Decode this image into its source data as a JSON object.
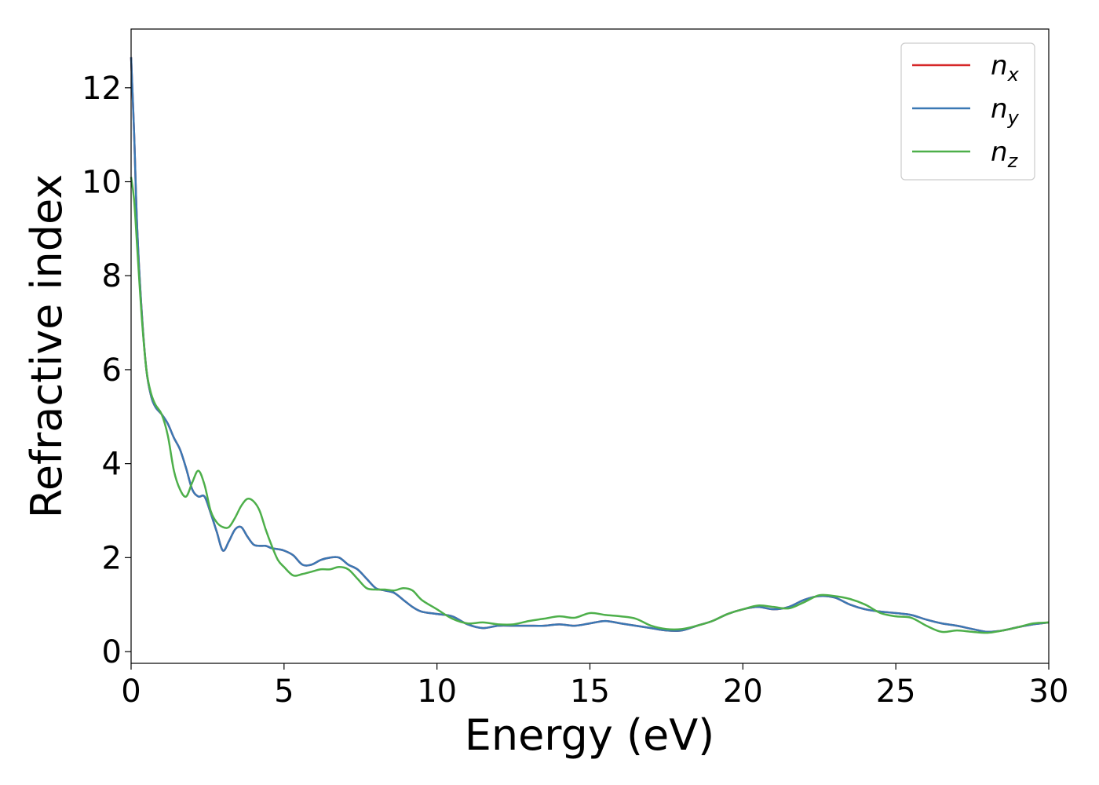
{
  "chart_data": {
    "type": "line",
    "title": "",
    "xlabel": "Energy (eV)",
    "ylabel": "Refractive index",
    "xlim": [
      0,
      30
    ],
    "ylim": [
      -0.25,
      13.25
    ],
    "xticks": [
      0,
      5,
      10,
      15,
      20,
      25,
      30
    ],
    "yticks": [
      0,
      2,
      4,
      6,
      8,
      10,
      12
    ],
    "grid": false,
    "legend_position": "top-right",
    "series": [
      {
        "name": "n",
        "subscript": "x",
        "color": "#d62728",
        "x": [
          0,
          0.1,
          0.2,
          0.35,
          0.5,
          0.65,
          0.8,
          1.0,
          1.2,
          1.4,
          1.6,
          1.8,
          2.0,
          2.2,
          2.4,
          2.6,
          2.8,
          3.0,
          3.2,
          3.4,
          3.6,
          3.8,
          4.0,
          4.2,
          4.4,
          4.6,
          4.8,
          5.0,
          5.3,
          5.6,
          5.9,
          6.2,
          6.5,
          6.8,
          7.1,
          7.4,
          7.7,
          8.0,
          8.3,
          8.6,
          8.9,
          9.2,
          9.5,
          10.0,
          10.5,
          11.0,
          11.5,
          12.0,
          12.5,
          13.0,
          13.5,
          14.0,
          14.5,
          15.0,
          15.5,
          16.0,
          16.5,
          17.0,
          17.5,
          18.0,
          18.5,
          19.0,
          19.5,
          20.0,
          20.5,
          21.0,
          21.5,
          22.0,
          22.5,
          23.0,
          23.5,
          24.0,
          24.5,
          25.0,
          25.5,
          26.0,
          26.5,
          27.0,
          27.5,
          28.0,
          28.5,
          29.0,
          29.5,
          30.0
        ],
        "y": [
          12.65,
          11.0,
          9.0,
          7.2,
          6.0,
          5.45,
          5.2,
          5.05,
          4.85,
          4.55,
          4.3,
          3.9,
          3.45,
          3.3,
          3.3,
          2.95,
          2.55,
          2.15,
          2.35,
          2.6,
          2.65,
          2.45,
          2.28,
          2.25,
          2.25,
          2.2,
          2.18,
          2.15,
          2.05,
          1.85,
          1.85,
          1.95,
          2.0,
          2.0,
          1.85,
          1.75,
          1.55,
          1.35,
          1.3,
          1.25,
          1.1,
          0.95,
          0.85,
          0.8,
          0.75,
          0.58,
          0.5,
          0.55,
          0.55,
          0.55,
          0.55,
          0.58,
          0.55,
          0.6,
          0.65,
          0.6,
          0.55,
          0.5,
          0.45,
          0.45,
          0.55,
          0.65,
          0.8,
          0.9,
          0.95,
          0.9,
          0.95,
          1.1,
          1.18,
          1.15,
          1.0,
          0.9,
          0.85,
          0.82,
          0.78,
          0.68,
          0.6,
          0.55,
          0.48,
          0.42,
          0.45,
          0.52,
          0.58,
          0.62
        ]
      },
      {
        "name": "n",
        "subscript": "y",
        "color": "#3a78b4",
        "x": [
          0,
          0.1,
          0.2,
          0.35,
          0.5,
          0.65,
          0.8,
          1.0,
          1.2,
          1.4,
          1.6,
          1.8,
          2.0,
          2.2,
          2.4,
          2.6,
          2.8,
          3.0,
          3.2,
          3.4,
          3.6,
          3.8,
          4.0,
          4.2,
          4.4,
          4.6,
          4.8,
          5.0,
          5.3,
          5.6,
          5.9,
          6.2,
          6.5,
          6.8,
          7.1,
          7.4,
          7.7,
          8.0,
          8.3,
          8.6,
          8.9,
          9.2,
          9.5,
          10.0,
          10.5,
          11.0,
          11.5,
          12.0,
          12.5,
          13.0,
          13.5,
          14.0,
          14.5,
          15.0,
          15.5,
          16.0,
          16.5,
          17.0,
          17.5,
          18.0,
          18.5,
          19.0,
          19.5,
          20.0,
          20.5,
          21.0,
          21.5,
          22.0,
          22.5,
          23.0,
          23.5,
          24.0,
          24.5,
          25.0,
          25.5,
          26.0,
          26.5,
          27.0,
          27.5,
          28.0,
          28.5,
          29.0,
          29.5,
          30.0
        ],
        "y": [
          12.65,
          11.0,
          9.0,
          7.2,
          6.0,
          5.45,
          5.2,
          5.05,
          4.85,
          4.55,
          4.3,
          3.9,
          3.45,
          3.3,
          3.3,
          2.95,
          2.55,
          2.15,
          2.35,
          2.6,
          2.65,
          2.45,
          2.28,
          2.25,
          2.25,
          2.2,
          2.18,
          2.15,
          2.05,
          1.85,
          1.85,
          1.95,
          2.0,
          2.0,
          1.85,
          1.75,
          1.55,
          1.35,
          1.3,
          1.25,
          1.1,
          0.95,
          0.85,
          0.8,
          0.75,
          0.58,
          0.5,
          0.55,
          0.55,
          0.55,
          0.55,
          0.58,
          0.55,
          0.6,
          0.65,
          0.6,
          0.55,
          0.5,
          0.45,
          0.45,
          0.55,
          0.65,
          0.8,
          0.9,
          0.95,
          0.9,
          0.95,
          1.1,
          1.18,
          1.15,
          1.0,
          0.9,
          0.85,
          0.82,
          0.78,
          0.68,
          0.6,
          0.55,
          0.48,
          0.42,
          0.45,
          0.52,
          0.58,
          0.62
        ]
      },
      {
        "name": "n",
        "subscript": "z",
        "color": "#4daf4a",
        "x": [
          0,
          0.1,
          0.2,
          0.35,
          0.5,
          0.65,
          0.8,
          1.0,
          1.2,
          1.4,
          1.6,
          1.8,
          2.0,
          2.2,
          2.4,
          2.6,
          2.8,
          3.0,
          3.2,
          3.4,
          3.6,
          3.8,
          4.0,
          4.2,
          4.4,
          4.6,
          4.8,
          5.0,
          5.3,
          5.6,
          5.9,
          6.2,
          6.5,
          6.8,
          7.1,
          7.4,
          7.7,
          8.0,
          8.3,
          8.6,
          8.9,
          9.2,
          9.5,
          10.0,
          10.5,
          11.0,
          11.5,
          12.0,
          12.5,
          13.0,
          13.5,
          14.0,
          14.5,
          15.0,
          15.5,
          16.0,
          16.5,
          17.0,
          17.5,
          18.0,
          18.5,
          19.0,
          19.5,
          20.0,
          20.5,
          21.0,
          21.5,
          22.0,
          22.5,
          23.0,
          23.5,
          24.0,
          24.5,
          25.0,
          25.5,
          26.0,
          26.5,
          27.0,
          27.5,
          28.0,
          28.5,
          29.0,
          29.5,
          30.0
        ],
        "y": [
          10.1,
          9.6,
          8.6,
          7.1,
          6.0,
          5.5,
          5.25,
          5.05,
          4.6,
          3.85,
          3.45,
          3.3,
          3.6,
          3.85,
          3.55,
          3.0,
          2.75,
          2.65,
          2.65,
          2.85,
          3.1,
          3.25,
          3.2,
          3.0,
          2.6,
          2.25,
          1.95,
          1.8,
          1.62,
          1.65,
          1.7,
          1.75,
          1.75,
          1.8,
          1.75,
          1.55,
          1.35,
          1.32,
          1.32,
          1.3,
          1.35,
          1.3,
          1.1,
          0.9,
          0.7,
          0.6,
          0.62,
          0.58,
          0.58,
          0.65,
          0.7,
          0.75,
          0.72,
          0.82,
          0.78,
          0.75,
          0.7,
          0.55,
          0.48,
          0.48,
          0.55,
          0.65,
          0.8,
          0.9,
          0.98,
          0.95,
          0.92,
          1.05,
          1.2,
          1.18,
          1.12,
          1.0,
          0.82,
          0.75,
          0.72,
          0.55,
          0.42,
          0.45,
          0.42,
          0.4,
          0.45,
          0.52,
          0.6,
          0.62
        ]
      }
    ]
  }
}
